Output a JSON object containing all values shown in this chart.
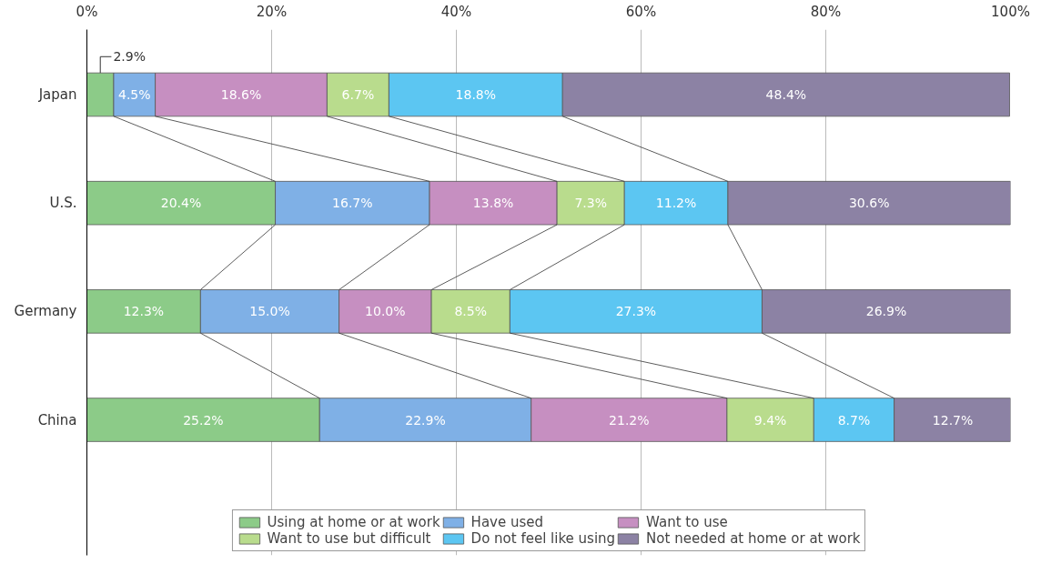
{
  "chart_data": {
    "type": "bar",
    "orientation": "horizontal",
    "stacked": true,
    "categories": [
      "Japan",
      "U.S.",
      "Germany",
      "China"
    ],
    "series": [
      {
        "name": "Using at home or at work",
        "color": "#8ccb88",
        "values": [
          2.9,
          20.4,
          12.3,
          25.2
        ],
        "value_labels": [
          "2.9%",
          "20.4%",
          "12.3%",
          "25.2%"
        ]
      },
      {
        "name": "Have used",
        "color": "#7fb0e6",
        "values": [
          4.5,
          16.7,
          15.0,
          22.9
        ],
        "value_labels": [
          "4.5%",
          "16.7%",
          "15.0%",
          "22.9%"
        ]
      },
      {
        "name": "Want to use",
        "color": "#c68fc1",
        "values": [
          18.6,
          13.8,
          10.0,
          21.2
        ],
        "value_labels": [
          "18.6%",
          "13.8%",
          "10.0%",
          "21.2%"
        ]
      },
      {
        "name": "Want to use but difficult",
        "color": "#b9dc8d",
        "values": [
          6.7,
          7.3,
          8.5,
          9.4
        ],
        "value_labels": [
          "6.7%",
          "7.3%",
          "8.5%",
          "9.4%"
        ]
      },
      {
        "name": "Do not feel like using",
        "color": "#5cc6f2",
        "values": [
          18.8,
          11.2,
          27.3,
          8.7
        ],
        "value_labels": [
          "18.8%",
          "11.2%",
          "27.3%",
          "8.7%"
        ]
      },
      {
        "name": "Not needed at home or at work",
        "color": "#8c82a4",
        "values": [
          48.4,
          30.6,
          26.9,
          12.7
        ],
        "value_labels": [
          "48.4%",
          "30.6%",
          "26.9%",
          "12.7%"
        ]
      }
    ],
    "xlim": [
      0,
      100
    ],
    "xticks": [
      {
        "value": 0,
        "label": "0%"
      },
      {
        "value": 20,
        "label": "20%"
      },
      {
        "value": 40,
        "label": "40%"
      },
      {
        "value": 60,
        "label": "60%"
      },
      {
        "value": 80,
        "label": "80%"
      },
      {
        "value": 100,
        "label": "100%"
      }
    ],
    "grid": "x",
    "legend": "bottom"
  }
}
